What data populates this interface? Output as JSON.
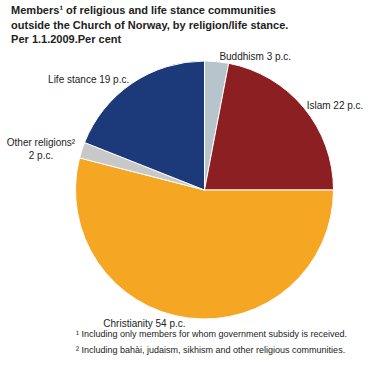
{
  "chart_data": {
    "type": "pie",
    "title": "Members¹ of religious and life stance communities\noutside the Church of Norway, by religion/life stance.\nPer 1.1.2009.Per cent",
    "categories": [
      "Buddhism 3 p.c.",
      "Islam 22 p.c.",
      "Christianity 54 p.c.",
      "Other religions²\n2 p.c.",
      "Life stance 19 p.c."
    ],
    "values": [
      3,
      22,
      54,
      2,
      19
    ],
    "colors": [
      "#B8C4CC",
      "#8B1F22",
      "#F5A623",
      "#C8C8C8",
      "#1C3A7A"
    ],
    "annotations": [
      "¹ Including only members for whom government subsidy is received.",
      "² Including bahài, judaism, sikhism and other religious communities."
    ],
    "legend": false
  }
}
